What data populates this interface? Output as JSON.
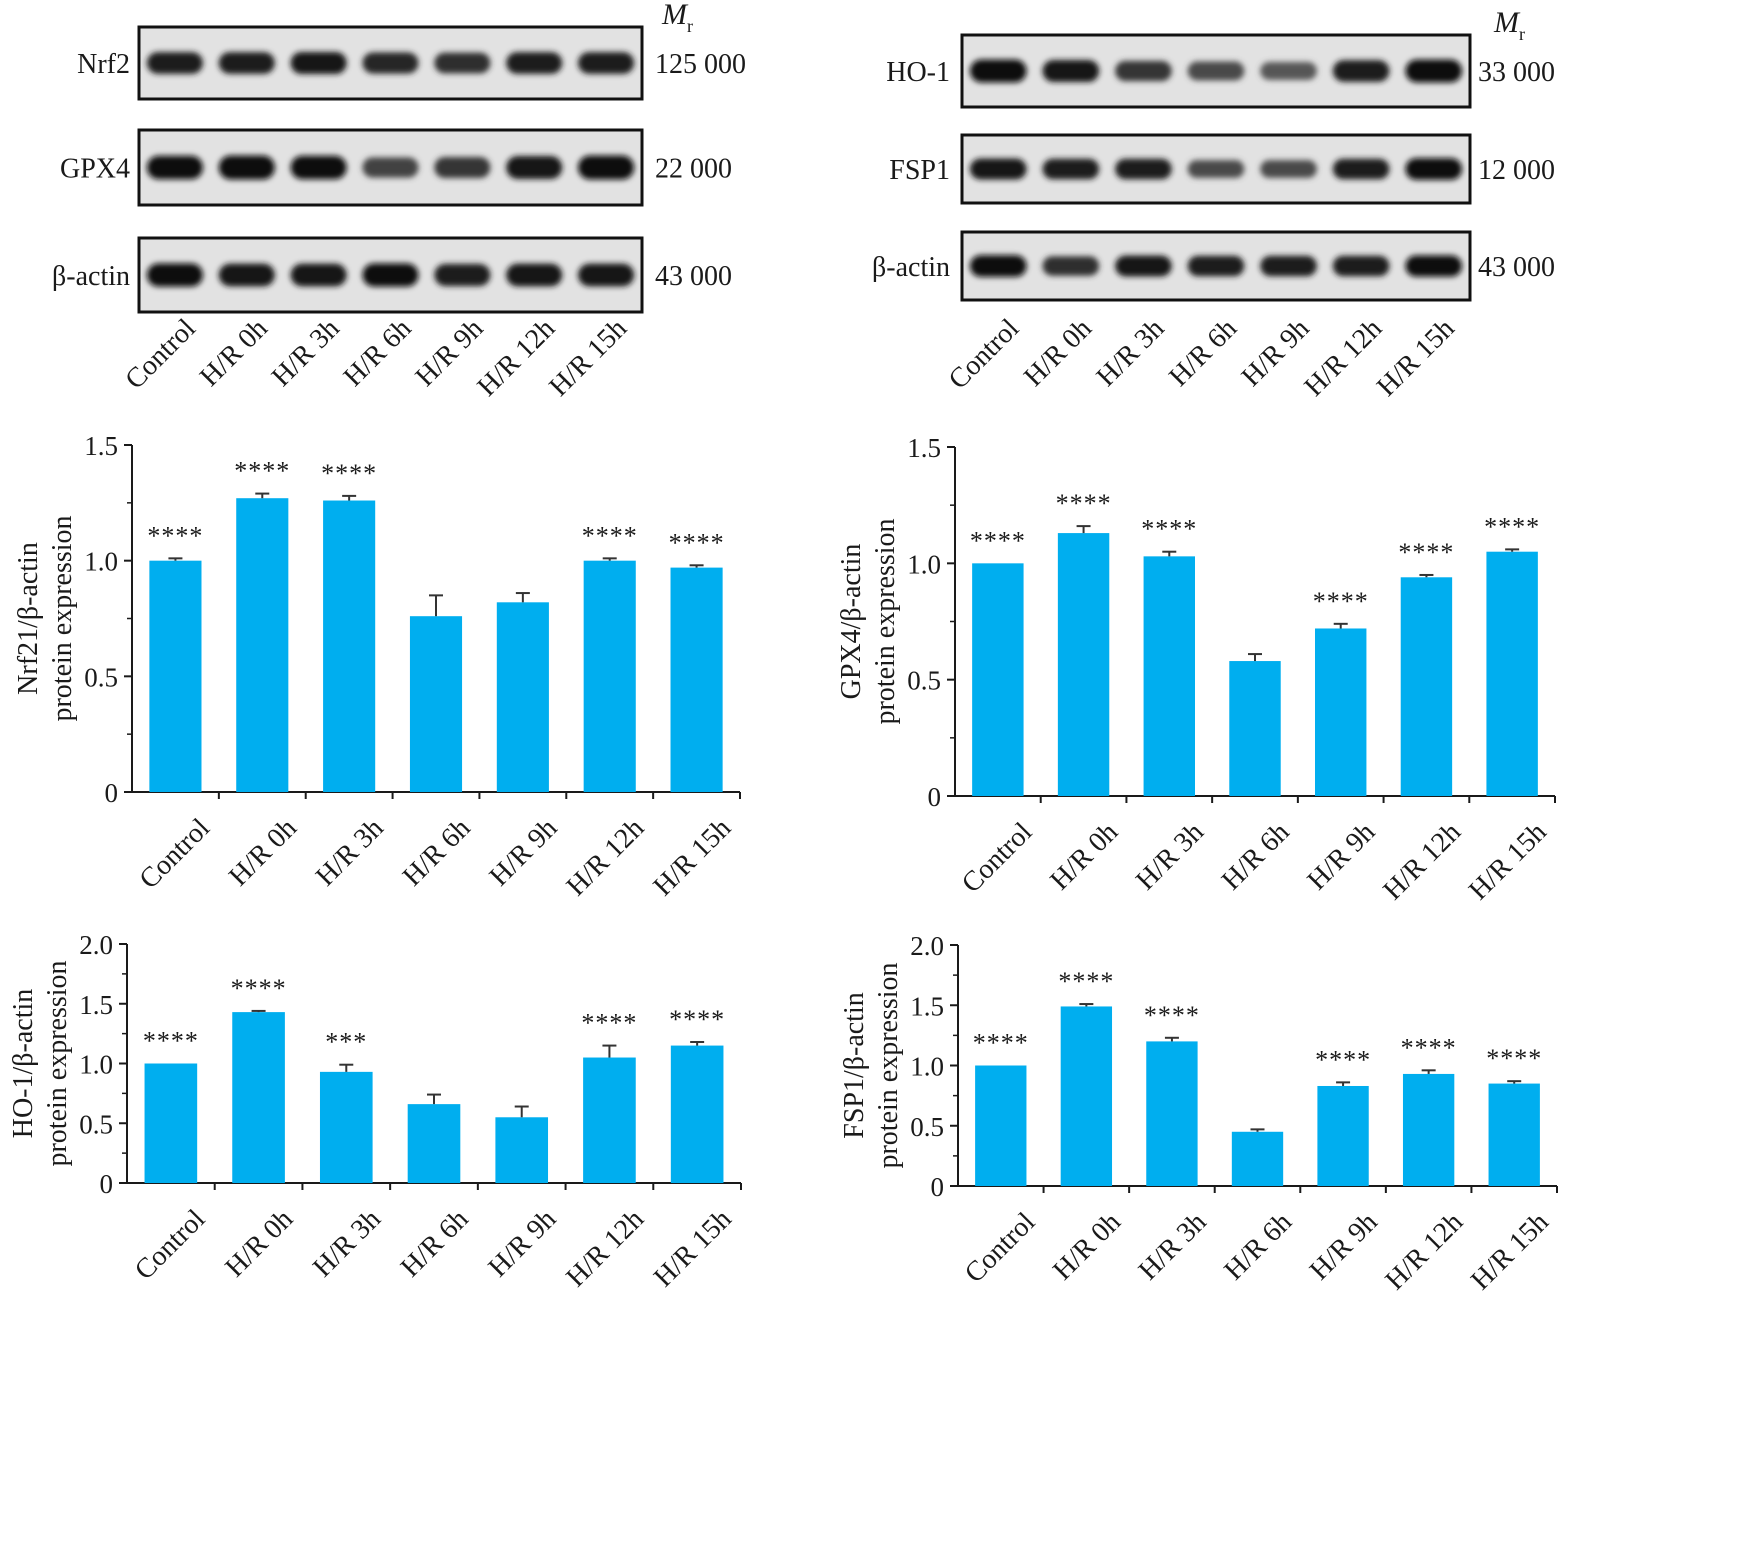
{
  "colors": {
    "bar": "#00AEEF",
    "axis": "#1a1a1a",
    "text": "#1a1a1a"
  },
  "lanes": [
    "Control",
    "H/R 0h",
    "H/R 3h",
    "H/R 6h",
    "H/R 9h",
    "H/R 12h",
    "H/R 15h"
  ],
  "blot_left": {
    "mr_main": "M",
    "mr_sub": "r",
    "rows": [
      {
        "label": "Nrf2",
        "mw": "125 000",
        "intensity": [
          0.85,
          0.85,
          0.9,
          0.8,
          0.75,
          0.85,
          0.85
        ]
      },
      {
        "label": "GPX4",
        "mw": "22 000",
        "intensity": [
          0.95,
          1.0,
          0.95,
          0.6,
          0.7,
          0.9,
          1.0
        ]
      },
      {
        "label": "β-actin",
        "mw": "43 000",
        "intensity": [
          0.95,
          0.9,
          0.9,
          0.95,
          0.85,
          0.9,
          0.9
        ]
      }
    ]
  },
  "blot_right": {
    "mr_main": "M",
    "mr_sub": "r",
    "rows": [
      {
        "label": "HO-1",
        "mw": "33 000",
        "intensity": [
          1.0,
          0.9,
          0.7,
          0.55,
          0.45,
          0.85,
          1.0
        ]
      },
      {
        "label": "FSP1",
        "mw": "12 000",
        "intensity": [
          0.9,
          0.85,
          0.85,
          0.55,
          0.55,
          0.85,
          1.0
        ]
      },
      {
        "label": "β-actin",
        "mw": "43 000",
        "intensity": [
          1.0,
          0.75,
          0.9,
          0.85,
          0.85,
          0.85,
          0.95
        ]
      }
    ]
  },
  "chart_data": [
    {
      "type": "bar",
      "ylabel_line1": "Nrf21/β-actin",
      "ylabel_line2": "protein expression",
      "categories": [
        "Control",
        "H/R 0h",
        "H/R 3h",
        "H/R 6h",
        "H/R 9h",
        "H/R 12h",
        "H/R 15h"
      ],
      "values": [
        1.0,
        1.27,
        1.26,
        0.76,
        0.82,
        1.0,
        0.97
      ],
      "errors": [
        0.01,
        0.02,
        0.02,
        0.09,
        0.04,
        0.01,
        0.01
      ],
      "significance": [
        "****",
        "****",
        "****",
        "",
        "",
        "****",
        "****"
      ],
      "ylim": [
        0,
        1.5
      ],
      "yticks": [
        "0",
        "0.5",
        "1.0",
        "1.5"
      ]
    },
    {
      "type": "bar",
      "ylabel_line1": "GPX4/β-actin",
      "ylabel_line2": "protein expression",
      "categories": [
        "Control",
        "H/R 0h",
        "H/R 3h",
        "H/R 6h",
        "H/R 9h",
        "H/R 12h",
        "H/R 15h"
      ],
      "values": [
        1.0,
        1.13,
        1.03,
        0.58,
        0.72,
        0.94,
        1.05
      ],
      "errors": [
        0.0,
        0.03,
        0.02,
        0.03,
        0.02,
        0.01,
        0.01
      ],
      "significance": [
        "****",
        "****",
        "****",
        "",
        "****",
        "****",
        "****"
      ],
      "ylim": [
        0,
        1.5
      ],
      "yticks": [
        "0",
        "0.5",
        "1.0",
        "1.5"
      ]
    },
    {
      "type": "bar",
      "ylabel_line1": "HO-1/β-actin",
      "ylabel_line2": "protein expression",
      "categories": [
        "Control",
        "H/R 0h",
        "H/R 3h",
        "H/R 6h",
        "H/R 9h",
        "H/R 12h",
        "H/R 15h"
      ],
      "values": [
        1.0,
        1.43,
        0.93,
        0.66,
        0.55,
        1.05,
        1.15
      ],
      "errors": [
        0.0,
        0.01,
        0.06,
        0.08,
        0.09,
        0.1,
        0.03
      ],
      "significance": [
        "****",
        "****",
        "***",
        "",
        "",
        "****",
        "****"
      ],
      "ylim": [
        0,
        2.0
      ],
      "yticks": [
        "0",
        "0.5",
        "1.0",
        "1.5",
        "2.0"
      ]
    },
    {
      "type": "bar",
      "ylabel_line1": "FSP1/β-actin",
      "ylabel_line2": "protein expression",
      "categories": [
        "Control",
        "H/R 0h",
        "H/R 3h",
        "H/R 6h",
        "H/R 9h",
        "H/R 12h",
        "H/R 15h"
      ],
      "values": [
        1.0,
        1.49,
        1.2,
        0.45,
        0.83,
        0.93,
        0.85
      ],
      "errors": [
        0.0,
        0.02,
        0.03,
        0.02,
        0.03,
        0.03,
        0.02
      ],
      "significance": [
        "****",
        "****",
        "****",
        "",
        "****",
        "****",
        "****"
      ],
      "ylim": [
        0,
        2.0
      ],
      "yticks": [
        "0",
        "0.5",
        "1.0",
        "1.5",
        "2.0"
      ]
    }
  ]
}
